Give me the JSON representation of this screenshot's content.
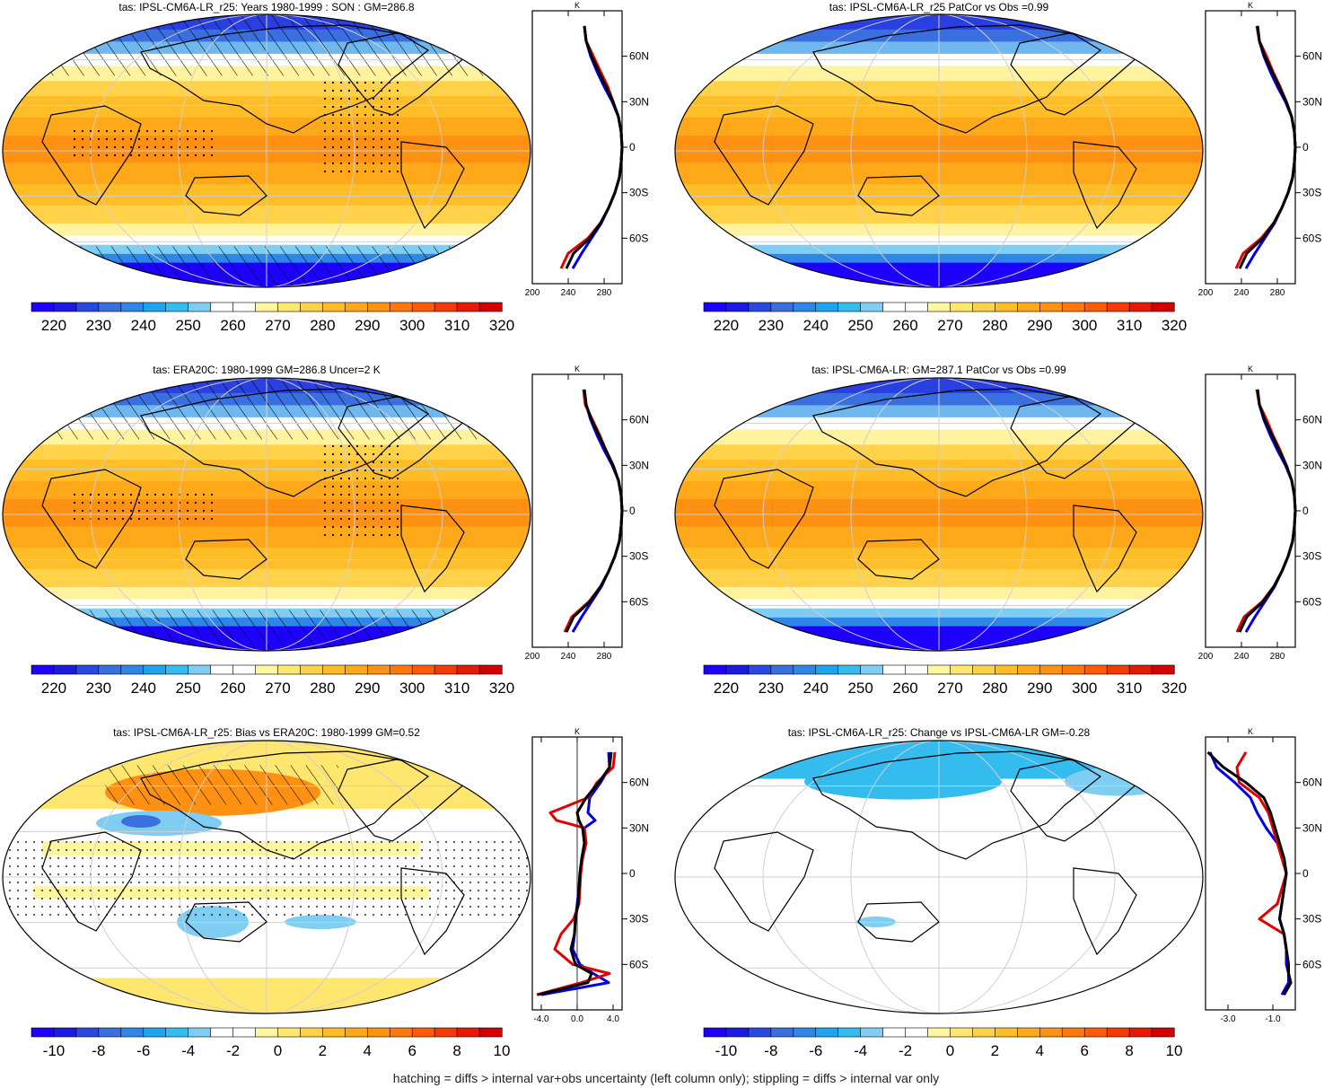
{
  "footer": "hatching = diffs > internal var+obs uncertainty (left column only); stippling = diffs > internal var only",
  "colors": {
    "model_line": "#e00000",
    "obs_line": "#0000e0",
    "ensemble_line": "#000000",
    "abs_scale": [
      "#1d00ff",
      "#1a1ae0",
      "#2a48e0",
      "#3a6fe0",
      "#2e86e6",
      "#1ea3ef",
      "#34bcef",
      "#7fcdf2",
      "#ffffff",
      "#ffffff",
      "#fff6a0",
      "#ffe66e",
      "#ffd24a",
      "#ffbe28",
      "#ffa81a",
      "#ff9112",
      "#ff780c",
      "#ff5a08",
      "#f53a06",
      "#e61a04",
      "#d40000"
    ],
    "diff_scale": [
      "#1d00ff",
      "#1a1ae0",
      "#2a48e0",
      "#3a6fe0",
      "#2e86e6",
      "#1ea3ef",
      "#34bcef",
      "#7fcdf2",
      "#ffffff",
      "#ffffff",
      "#fff6a0",
      "#ffe66e",
      "#ffd24a",
      "#ffbe28",
      "#ffa81a",
      "#ff9112",
      "#ff780c",
      "#ff5a08",
      "#f53a06",
      "#e61a04",
      "#d40000"
    ]
  },
  "panels": [
    {
      "title": "tas: IPSL-CM6A-LR_r25: Years 1980-1999 : SON : GM=286.8",
      "map_kind": "abs",
      "hatched": true,
      "colorbar_labels": [
        "220",
        "230",
        "240",
        "250",
        "260",
        "270",
        "280",
        "290",
        "300",
        "310",
        "320"
      ],
      "zonal_unit": "K",
      "zonal_xticks": [
        "200",
        "240",
        "280"
      ],
      "zonal_yticks": [
        "60N",
        "30N",
        "0",
        "30S",
        "60S"
      ]
    },
    {
      "title": "tas: IPSL-CM6A-LR_r25 PatCor vs Obs =0.99",
      "map_kind": "abs",
      "hatched": false,
      "colorbar_labels": [
        "220",
        "230",
        "240",
        "250",
        "260",
        "270",
        "280",
        "290",
        "300",
        "310",
        "320"
      ],
      "zonal_unit": "K",
      "zonal_xticks": [
        "200",
        "240",
        "280"
      ],
      "zonal_yticks": [
        "60N",
        "30N",
        "0",
        "30S",
        "60S"
      ]
    },
    {
      "title": "tas: ERA20C: 1980-1999 GM=286.8 Uncer=2 K",
      "map_kind": "abs",
      "hatched": true,
      "colorbar_labels": [
        "220",
        "230",
        "240",
        "250",
        "260",
        "270",
        "280",
        "290",
        "300",
        "310",
        "320"
      ],
      "zonal_unit": "K",
      "zonal_xticks": [
        "200",
        "240",
        "280"
      ],
      "zonal_yticks": [
        "60N",
        "30N",
        "0",
        "30S",
        "60S"
      ]
    },
    {
      "title": "tas: IPSL-CM6A-LR: GM=287.1 PatCor vs Obs =0.99",
      "map_kind": "abs",
      "hatched": false,
      "colorbar_labels": [
        "220",
        "230",
        "240",
        "250",
        "260",
        "270",
        "280",
        "290",
        "300",
        "310",
        "320"
      ],
      "zonal_unit": "K",
      "zonal_xticks": [
        "200",
        "240",
        "280"
      ],
      "zonal_yticks": [
        "60N",
        "30N",
        "0",
        "30S",
        "60S"
      ]
    },
    {
      "title": "tas: IPSL-CM6A-LR_r25: Bias vs ERA20C: 1980-1999  GM=0.52",
      "map_kind": "bias",
      "hatched": true,
      "colorbar_labels": [
        "-10",
        "-8",
        "-6",
        "-4",
        "-2",
        "0",
        "2",
        "4",
        "6",
        "8",
        "10"
      ],
      "zonal_unit": "K",
      "zonal_xticks": [
        "-4.0",
        "0.0",
        "4.0"
      ],
      "zonal_yticks": [
        "60N",
        "30N",
        "0",
        "30S",
        "60S"
      ]
    },
    {
      "title": "tas: IPSL-CM6A-LR_r25: Change vs IPSL-CM6A-LR GM=-0.28",
      "map_kind": "change",
      "hatched": false,
      "colorbar_labels": [
        "-10",
        "-8",
        "-6",
        "-4",
        "-2",
        "0",
        "2",
        "4",
        "6",
        "8",
        "10"
      ],
      "zonal_unit": "K",
      "zonal_xticks": [
        "-3.0",
        "-1.0"
      ],
      "zonal_yticks": [
        "60N",
        "30N",
        "0",
        "30S",
        "60S"
      ]
    }
  ],
  "chart_data": [
    {
      "type": "line",
      "title": "",
      "xlabel": "K",
      "ylabel": "",
      "xlim": [
        200,
        300
      ],
      "ylim": [
        -90,
        90
      ],
      "y": [
        -80,
        -70,
        -60,
        -50,
        -40,
        -30,
        -20,
        -10,
        0,
        10,
        20,
        30,
        40,
        50,
        60,
        70,
        80
      ],
      "series": [
        {
          "values": [
            232,
            240,
            262,
            276,
            285,
            292,
            297,
            299,
            300,
            299,
            296,
            290,
            284,
            276,
            268,
            260,
            258
          ]
        },
        {
          "values": [
            245,
            255,
            266,
            277,
            285,
            292,
            297,
            299,
            300,
            299,
            296,
            289,
            280,
            272,
            265,
            260,
            258
          ]
        },
        {
          "values": [
            238,
            246,
            264,
            276,
            285,
            292,
            297,
            299,
            300,
            299,
            296,
            290,
            282,
            274,
            266,
            260,
            258
          ]
        }
      ]
    },
    {
      "type": "line",
      "title": "",
      "xlabel": "K",
      "ylabel": "",
      "xlim": [
        200,
        300
      ],
      "ylim": [
        -90,
        90
      ],
      "y": [
        -80,
        -70,
        -60,
        -50,
        -40,
        -30,
        -20,
        -10,
        0,
        10,
        20,
        30,
        40,
        50,
        60,
        70,
        80
      ],
      "series": [
        {
          "values": [
            234,
            242,
            262,
            276,
            285,
            292,
            297,
            299,
            300,
            299,
            296,
            290,
            283,
            275,
            268,
            260,
            257
          ]
        },
        {
          "values": [
            245,
            255,
            266,
            277,
            285,
            292,
            297,
            299,
            300,
            299,
            296,
            289,
            280,
            272,
            265,
            260,
            258
          ]
        },
        {
          "values": [
            238,
            246,
            264,
            276,
            285,
            292,
            297,
            299,
            300,
            299,
            296,
            290,
            282,
            274,
            266,
            260,
            258
          ]
        }
      ]
    },
    {
      "type": "line",
      "title": "",
      "xlabel": "K",
      "ylabel": "",
      "xlim": [
        200,
        300
      ],
      "ylim": [
        -90,
        90
      ],
      "y": [
        -80,
        -70,
        -60,
        -50,
        -40,
        -30,
        -20,
        -10,
        0,
        10,
        20,
        30,
        40,
        50,
        60,
        70,
        80
      ],
      "series": [
        {
          "values": [
            236,
            244,
            263,
            276,
            285,
            292,
            297,
            299,
            300,
            299,
            296,
            290,
            282,
            275,
            267,
            259,
            257
          ]
        },
        {
          "values": [
            245,
            255,
            266,
            277,
            285,
            292,
            297,
            299,
            300,
            299,
            296,
            289,
            280,
            272,
            265,
            260,
            258
          ]
        },
        {
          "values": [
            238,
            246,
            264,
            276,
            285,
            292,
            297,
            299,
            300,
            299,
            296,
            290,
            282,
            274,
            266,
            260,
            258
          ]
        }
      ]
    },
    {
      "type": "line",
      "title": "",
      "xlabel": "K",
      "ylabel": "",
      "xlim": [
        200,
        300
      ],
      "ylim": [
        -90,
        90
      ],
      "y": [
        -80,
        -70,
        -60,
        -50,
        -40,
        -30,
        -20,
        -10,
        0,
        10,
        20,
        30,
        40,
        50,
        60,
        70,
        80
      ],
      "series": [
        {
          "values": [
            235,
            243,
            263,
            276,
            285,
            292,
            297,
            299,
            300,
            299,
            296,
            290,
            283,
            275,
            268,
            260,
            257
          ]
        },
        {
          "values": [
            245,
            255,
            266,
            277,
            285,
            292,
            297,
            299,
            300,
            299,
            296,
            289,
            280,
            272,
            265,
            260,
            258
          ]
        },
        {
          "values": [
            238,
            246,
            264,
            276,
            285,
            292,
            297,
            299,
            300,
            299,
            296,
            290,
            282,
            274,
            266,
            260,
            258
          ]
        }
      ]
    },
    {
      "type": "line",
      "title": "",
      "xlabel": "K",
      "ylabel": "",
      "xlim": [
        -5,
        5
      ],
      "ylim": [
        -90,
        90
      ],
      "y": [
        -80,
        -72,
        -66,
        -60,
        -50,
        -40,
        -30,
        -20,
        -10,
        0,
        10,
        20,
        30,
        35,
        40,
        50,
        60,
        70,
        80
      ],
      "series": [
        {
          "values": [
            -4.5,
            0.5,
            3.6,
            -0.5,
            -2.5,
            -1.8,
            -0.4,
            0.2,
            0.3,
            0.4,
            0.6,
            1.0,
            0.8,
            -2.3,
            -3.0,
            1.2,
            2.2,
            4.0,
            4.2
          ]
        },
        {
          "values": [
            -4.0,
            3.5,
            1.8,
            0.3,
            -0.5,
            -0.3,
            -0.2,
            0.0,
            0.2,
            0.3,
            0.6,
            0.9,
            0.8,
            2.0,
            1.2,
            1.4,
            2.6,
            3.6,
            3.5
          ]
        },
        {
          "values": [
            -4.4,
            1.2,
            1.6,
            -0.2,
            -0.7,
            -0.3,
            -0.2,
            0.1,
            0.2,
            0.3,
            0.5,
            0.8,
            0.6,
            0.2,
            0.0,
            1.0,
            2.4,
            3.6,
            3.8
          ]
        }
      ]
    },
    {
      "type": "line",
      "title": "",
      "xlabel": "K",
      "ylabel": "",
      "xlim": [
        -4,
        0
      ],
      "ylim": [
        -90,
        90
      ],
      "y": [
        -80,
        -72,
        -66,
        -60,
        -50,
        -40,
        -30,
        -20,
        -10,
        0,
        10,
        20,
        30,
        40,
        50,
        60,
        70,
        80
      ],
      "series": [
        {
          "values": [
            -0.5,
            -0.2,
            -0.3,
            -0.3,
            -0.4,
            -0.5,
            -1.6,
            -0.8,
            -0.6,
            -0.4,
            -0.6,
            -0.8,
            -1.0,
            -1.2,
            -1.6,
            -2.5,
            -2.6,
            -2.2
          ]
        },
        {
          "values": [
            -0.6,
            -0.3,
            -0.3,
            -0.4,
            -0.4,
            -0.5,
            -0.7,
            -0.6,
            -0.5,
            -0.4,
            -0.5,
            -0.8,
            -1.3,
            -1.7,
            -2.0,
            -2.7,
            -3.5,
            -3.8
          ]
        },
        {
          "values": [
            -0.5,
            -0.2,
            -0.3,
            -0.3,
            -0.4,
            -0.5,
            -0.7,
            -0.6,
            -0.5,
            -0.4,
            -0.5,
            -0.7,
            -0.9,
            -1.1,
            -1.4,
            -2.2,
            -3.2,
            -3.9
          ]
        }
      ]
    }
  ]
}
